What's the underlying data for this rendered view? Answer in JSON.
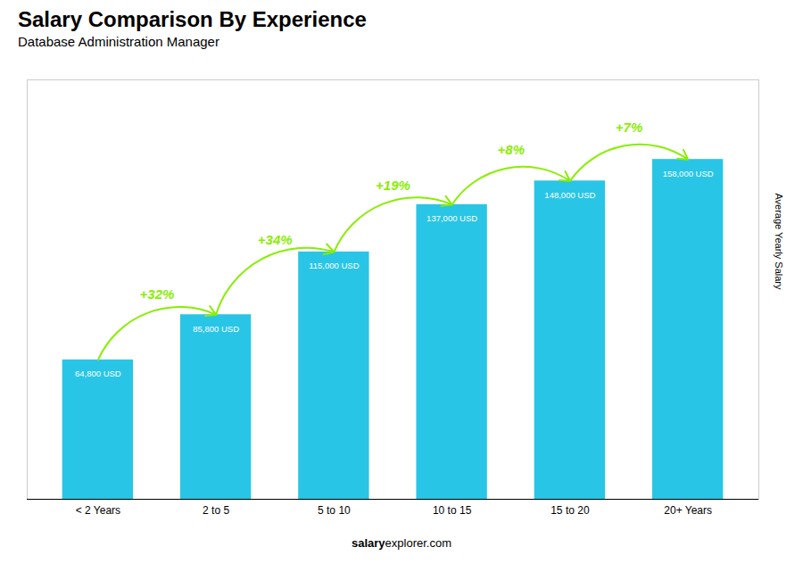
{
  "chart_data": {
    "type": "bar",
    "title": "Salary Comparison By Experience",
    "subtitle": "Database Administration Manager",
    "ylabel": "Average Yearly Salary",
    "categories": [
      "< 2 Years",
      "2 to 5",
      "5 to 10",
      "10 to 15",
      "15 to 20",
      "20+ Years"
    ],
    "values": [
      64800,
      85800,
      115000,
      137000,
      148000,
      158000
    ],
    "value_labels": [
      "64,800 USD",
      "85,800 USD",
      "115,000 USD",
      "137,000 USD",
      "148,000 USD",
      "158,000 USD"
    ],
    "data_labels": true,
    "color": "#29C5E6",
    "ylim": [
      0,
      195000
    ],
    "tick_labels": "x",
    "grid": false,
    "annotations": [
      {
        "text": "+32%",
        "color": "#88EE00"
      },
      {
        "text": "+34%",
        "color": "#88EE00"
      },
      {
        "text": "+19%",
        "color": "#88EE00"
      },
      {
        "text": "+8%",
        "color": "#88EE00"
      },
      {
        "text": "+7%",
        "color": "#88EE00"
      }
    ],
    "caption": {
      "bold": "salary",
      "normal": "explorer.com"
    }
  }
}
